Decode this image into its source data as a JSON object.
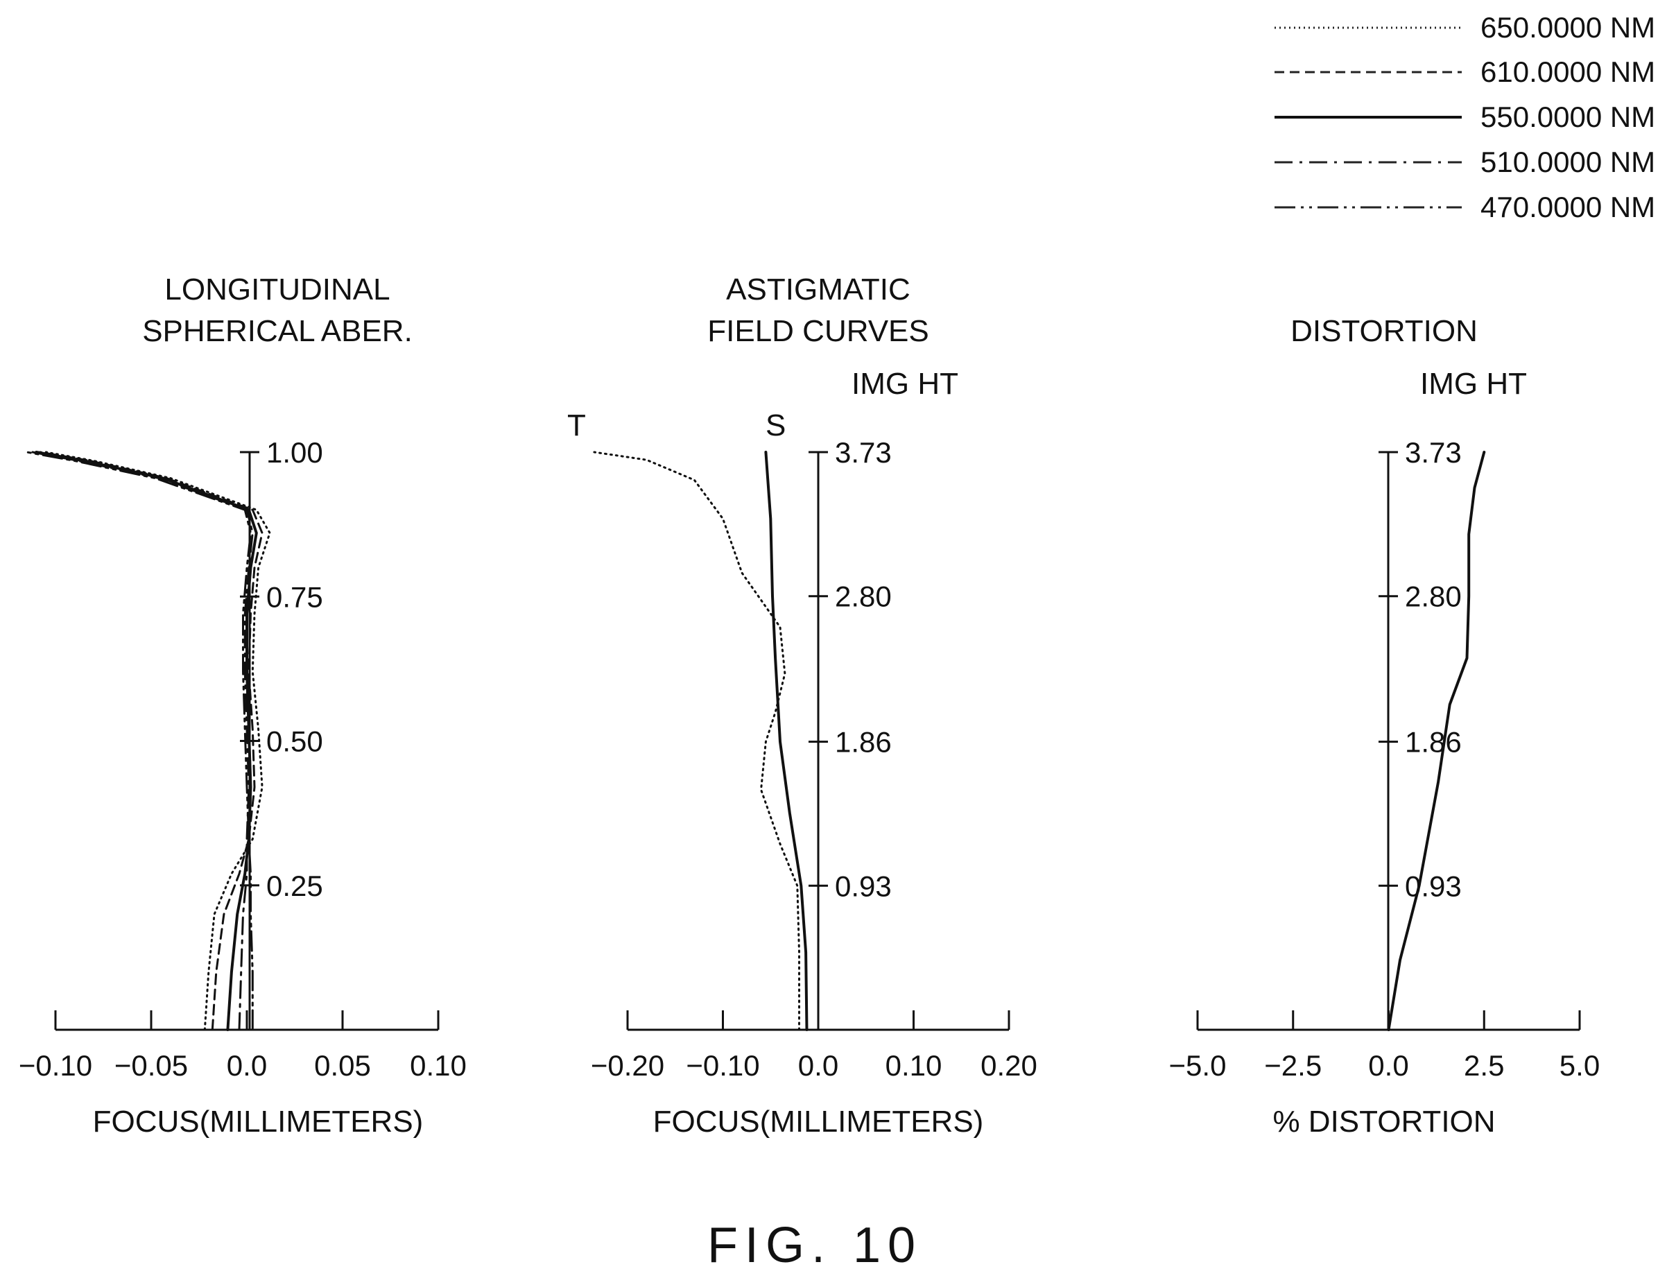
{
  "figure_label": "FIG. 10",
  "legend": [
    {
      "label": "650.0000 NM",
      "style": "dotted"
    },
    {
      "label": "610.0000 NM",
      "style": "dashed"
    },
    {
      "label": "550.0000 NM",
      "style": "solid"
    },
    {
      "label": "510.0000 NM",
      "style": "dashdot"
    },
    {
      "label": "470.0000 NM",
      "style": "dashdotdot"
    }
  ],
  "chart_data": [
    {
      "type": "line",
      "title_lines": [
        "LONGITUDINAL",
        "SPHERICAL ABER."
      ],
      "xlabel": "FOCUS(MILLIMETERS)",
      "xlim": [
        -0.1,
        0.1
      ],
      "x_ticks": [
        -0.1,
        -0.05,
        0.0,
        0.05,
        0.1
      ],
      "x_tick_labels": [
        "−0.10",
        "−0.05",
        "0.0",
        "0.05",
        "0.10"
      ],
      "ylim": [
        0,
        1.0
      ],
      "y_ticks": [
        0.25,
        0.5,
        0.75,
        1.0
      ],
      "y_tick_labels": [
        "0.25",
        "0.50",
        "0.75",
        "1.00"
      ],
      "series": [
        {
          "name": "650.0000 NM",
          "style": "dotted",
          "points": [
            [
              -0.022,
              0
            ],
            [
              -0.02,
              0.1
            ],
            [
              -0.017,
              0.2
            ],
            [
              -0.008,
              0.27
            ],
            [
              0.003,
              0.33
            ],
            [
              0.008,
              0.42
            ],
            [
              0.006,
              0.52
            ],
            [
              0.003,
              0.62
            ],
            [
              0.004,
              0.72
            ],
            [
              0.006,
              0.8
            ],
            [
              0.012,
              0.86
            ],
            [
              0.005,
              0.9
            ],
            [
              -0.04,
              0.955
            ],
            [
              -0.08,
              0.985
            ],
            [
              -0.105,
              1.0
            ]
          ]
        },
        {
          "name": "610.0000 NM",
          "style": "dashed",
          "points": [
            [
              -0.018,
              0
            ],
            [
              -0.016,
              0.1
            ],
            [
              -0.012,
              0.2
            ],
            [
              -0.004,
              0.27
            ],
            [
              0.001,
              0.33
            ],
            [
              0.004,
              0.42
            ],
            [
              0.003,
              0.52
            ],
            [
              0.001,
              0.62
            ],
            [
              0.002,
              0.72
            ],
            [
              0.004,
              0.8
            ],
            [
              0.008,
              0.86
            ],
            [
              0.003,
              0.9
            ],
            [
              -0.042,
              0.955
            ],
            [
              -0.082,
              0.985
            ],
            [
              -0.108,
              1.0
            ]
          ]
        },
        {
          "name": "550.0000 NM",
          "style": "solid",
          "points": [
            [
              -0.01,
              0
            ],
            [
              -0.008,
              0.1
            ],
            [
              -0.005,
              0.2
            ],
            [
              -0.001,
              0.27
            ],
            [
              0.001,
              0.33
            ],
            [
              0.002,
              0.42
            ],
            [
              0.001,
              0.52
            ],
            [
              0.0,
              0.62
            ],
            [
              0.0,
              0.72
            ],
            [
              0.002,
              0.8
            ],
            [
              0.005,
              0.86
            ],
            [
              0.001,
              0.9
            ],
            [
              -0.044,
              0.955
            ],
            [
              -0.085,
              0.985
            ],
            [
              -0.11,
              1.0
            ]
          ]
        },
        {
          "name": "510.0000 NM",
          "style": "dashdot",
          "points": [
            [
              -0.004,
              0
            ],
            [
              -0.003,
              0.1
            ],
            [
              -0.002,
              0.2
            ],
            [
              0.0,
              0.27
            ],
            [
              0.0,
              0.33
            ],
            [
              0.001,
              0.42
            ],
            [
              0.0,
              0.52
            ],
            [
              -0.001,
              0.62
            ],
            [
              -0.001,
              0.72
            ],
            [
              0.001,
              0.8
            ],
            [
              0.003,
              0.86
            ],
            [
              0.0,
              0.9
            ],
            [
              -0.046,
              0.955
            ],
            [
              -0.088,
              0.985
            ],
            [
              -0.112,
              1.0
            ]
          ]
        },
        {
          "name": "470.0000 NM",
          "style": "dashdotdot",
          "points": [
            [
              0.003,
              0
            ],
            [
              0.003,
              0.1
            ],
            [
              0.002,
              0.2
            ],
            [
              0.002,
              0.27
            ],
            [
              0.001,
              0.33
            ],
            [
              0.0,
              0.42
            ],
            [
              -0.001,
              0.52
            ],
            [
              -0.002,
              0.62
            ],
            [
              -0.002,
              0.72
            ],
            [
              0.0,
              0.8
            ],
            [
              0.002,
              0.86
            ],
            [
              -0.001,
              0.9
            ],
            [
              -0.048,
              0.955
            ],
            [
              -0.09,
              0.985
            ],
            [
              -0.115,
              1.0
            ]
          ]
        }
      ]
    },
    {
      "type": "line",
      "title_lines": [
        "ASTIGMATIC",
        "FIELD CURVES"
      ],
      "axis_title": "IMG HT",
      "xlabel": "FOCUS(MILLIMETERS)",
      "xlim": [
        -0.2,
        0.2
      ],
      "x_ticks": [
        -0.2,
        -0.1,
        0.0,
        0.1,
        0.2
      ],
      "x_tick_labels": [
        "−0.20",
        "−0.10",
        "0.0",
        "0.10",
        "0.20"
      ],
      "ylim": [
        0,
        3.73
      ],
      "y_ticks": [
        0.93,
        1.86,
        2.8,
        3.73
      ],
      "y_tick_labels": [
        "0.93",
        "1.86",
        "2.80",
        "3.73"
      ],
      "curve_labels": [
        "T",
        "S"
      ],
      "series": [
        {
          "name": "T",
          "style": "dotted",
          "points": [
            [
              -0.02,
              0
            ],
            [
              -0.02,
              0.5
            ],
            [
              -0.022,
              0.93
            ],
            [
              -0.04,
              1.2
            ],
            [
              -0.06,
              1.55
            ],
            [
              -0.055,
              1.86
            ],
            [
              -0.045,
              2.05
            ],
            [
              -0.035,
              2.3
            ],
            [
              -0.04,
              2.6
            ],
            [
              -0.08,
              2.95
            ],
            [
              -0.1,
              3.3
            ],
            [
              -0.13,
              3.55
            ],
            [
              -0.18,
              3.68
            ],
            [
              -0.235,
              3.73
            ]
          ]
        },
        {
          "name": "S",
          "style": "solid",
          "points": [
            [
              -0.012,
              0
            ],
            [
              -0.013,
              0.5
            ],
            [
              -0.018,
              0.93
            ],
            [
              -0.03,
              1.4
            ],
            [
              -0.04,
              1.86
            ],
            [
              -0.045,
              2.4
            ],
            [
              -0.048,
              2.8
            ],
            [
              -0.05,
              3.3
            ],
            [
              -0.055,
              3.73
            ]
          ]
        }
      ]
    },
    {
      "type": "line",
      "title_lines": [
        "DISTORTION"
      ],
      "axis_title": "IMG HT",
      "xlabel": "% DISTORTION",
      "xlim": [
        -5.0,
        5.0
      ],
      "x_ticks": [
        -5.0,
        -2.5,
        0.0,
        2.5,
        5.0
      ],
      "x_tick_labels": [
        "−5.0",
        "−2.5",
        "0.0",
        "2.5",
        "5.0"
      ],
      "ylim": [
        0,
        3.73
      ],
      "y_ticks": [
        0.93,
        1.86,
        2.8,
        3.73
      ],
      "y_tick_labels": [
        "0.93",
        "1.86",
        "2.80",
        "3.73"
      ],
      "series": [
        {
          "name": "550.0000 NM",
          "style": "solid",
          "points": [
            [
              0,
              0
            ],
            [
              0.3,
              0.45
            ],
            [
              0.8,
              0.93
            ],
            [
              1.3,
              1.6
            ],
            [
              1.6,
              2.1
            ],
            [
              2.05,
              2.4
            ],
            [
              2.1,
              2.8
            ],
            [
              2.1,
              3.2
            ],
            [
              2.25,
              3.5
            ],
            [
              2.5,
              3.73
            ]
          ]
        }
      ]
    }
  ]
}
